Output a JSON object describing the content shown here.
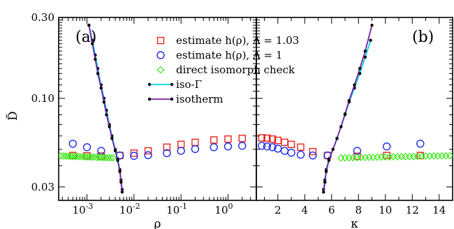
{
  "chart_data": {
    "type": "scatter",
    "ylabel": "D̃",
    "ylim": [
      0.025,
      0.3
    ],
    "yscale": "log",
    "yticks": [
      {
        "value": 0.03,
        "label": "0.03"
      },
      {
        "value": 0.1,
        "label": "0.10"
      },
      {
        "value": 0.3,
        "label": "0.30"
      }
    ],
    "legend": {
      "placement": "top-center",
      "entries": [
        {
          "label": "estimate h(ρ),  Λ = 1.03",
          "marker": "square",
          "color": "#e8231c"
        },
        {
          "label": "estimate h(ρ),  Λ = 1",
          "marker": "circle",
          "color": "#1c2be8"
        },
        {
          "label": "direct isomorph check",
          "marker": "diamond",
          "color": "#3de81c"
        },
        {
          "label": "iso-Γ",
          "marker": "line-dot",
          "color": "#00d4e6"
        },
        {
          "label": "isotherm",
          "marker": "line-dot",
          "color": "#7a1fa8"
        }
      ]
    },
    "panels": [
      {
        "label": "(a)",
        "xlabel": "ρ",
        "xscale": "log",
        "xlim": [
          0.00025,
          4.0
        ],
        "xticks": [
          {
            "value": 0.001,
            "label": "10",
            "sup": "-3"
          },
          {
            "value": 0.01,
            "label": "10",
            "sup": "-2"
          },
          {
            "value": 0.1,
            "label": "10",
            "sup": "-1"
          },
          {
            "value": 1,
            "label": "10",
            "sup": "0"
          }
        ],
        "series": [
          {
            "name": "estimate h(ρ),  Λ = 1.03",
            "x": [
              0.0005,
              0.001,
              0.002,
              0.005,
              0.01,
              0.02,
              0.05,
              0.1,
              0.2,
              0.5,
              1,
              2
            ],
            "y": [
              0.046,
              0.0458,
              0.0457,
              0.046,
              0.0475,
              0.049,
              0.0515,
              0.0535,
              0.055,
              0.0568,
              0.0575,
              0.058
            ]
          },
          {
            "name": "estimate h(ρ),  Λ = 1",
            "x": [
              0.0005,
              0.001,
              0.002,
              0.005,
              0.01,
              0.02,
              0.05,
              0.1,
              0.2,
              0.5,
              1,
              2
            ],
            "y": [
              0.054,
              0.0515,
              0.049,
              0.046,
              0.0458,
              0.0462,
              0.0475,
              0.049,
              0.0502,
              0.0515,
              0.052,
              0.0525
            ]
          },
          {
            "name": "direct isomorph check",
            "x": [
              0.00028,
              0.00032,
              0.00036,
              0.0004,
              0.00045,
              0.0005,
              0.00056,
              0.00063,
              0.0007,
              0.0008,
              0.0009,
              0.001,
              0.00112,
              0.00126,
              0.0014,
              0.0016,
              0.0018,
              0.002,
              0.00224,
              0.0025,
              0.0028,
              0.0032,
              0.0036
            ],
            "y": [
              0.0458,
              0.0457,
              0.0456,
              0.0455,
              0.0455,
              0.0454,
              0.0454,
              0.0453,
              0.0453,
              0.0452,
              0.0452,
              0.0451,
              0.0451,
              0.045,
              0.045,
              0.0449,
              0.0449,
              0.0448,
              0.0448,
              0.0447,
              0.0447,
              0.0446,
              0.0446
            ]
          },
          {
            "name": "iso-Γ",
            "x": [
              0.0011,
              0.0013,
              0.0015,
              0.0017,
              0.002,
              0.0023,
              0.0026,
              0.003,
              0.0034,
              0.004,
              0.0045,
              0.005,
              0.0053,
              0.0056
            ],
            "y": [
              0.27,
              0.22,
              0.18,
              0.15,
              0.12,
              0.1,
              0.085,
              0.07,
              0.06,
              0.05,
              0.044,
              0.038,
              0.033,
              0.029
            ]
          },
          {
            "name": "isotherm",
            "x": [
              0.0011,
              0.0013,
              0.0015,
              0.0017,
              0.002,
              0.0023,
              0.0026,
              0.003,
              0.0034,
              0.004,
              0.0045,
              0.005,
              0.0053,
              0.0056
            ],
            "y": [
              0.27,
              0.21,
              0.17,
              0.14,
              0.115,
              0.095,
              0.08,
              0.068,
              0.058,
              0.049,
              0.043,
              0.037,
              0.032,
              0.028
            ]
          }
        ]
      },
      {
        "label": "(b)",
        "xlabel": "κ",
        "xscale": "linear",
        "xlim": [
          0.4,
          15
        ],
        "xticks": [
          {
            "value": 2,
            "label": "2"
          },
          {
            "value": 4,
            "label": "4"
          },
          {
            "value": 6,
            "label": "6"
          },
          {
            "value": 8,
            "label": "8"
          },
          {
            "value": 10,
            "label": "10"
          },
          {
            "value": 12,
            "label": "12"
          },
          {
            "value": 14,
            "label": "14"
          }
        ],
        "series": [
          {
            "name": "estimate h(ρ),  Λ = 1.03",
            "x": [
              0.8,
              1.2,
              1.6,
              2.0,
              2.5,
              3.0,
              3.7,
              4.6,
              5.7,
              7.9,
              10.1,
              12.6
            ],
            "y": [
              0.0585,
              0.0582,
              0.0575,
              0.0565,
              0.055,
              0.0535,
              0.0515,
              0.0485,
              0.046,
              0.0455,
              0.046,
              0.046
            ]
          },
          {
            "name": "estimate h(ρ),  Λ = 1",
            "x": [
              0.8,
              1.2,
              1.6,
              2.0,
              2.5,
              3.0,
              3.7,
              4.6,
              5.7,
              7.9,
              10.1,
              12.6
            ],
            "y": [
              0.0525,
              0.052,
              0.0515,
              0.0505,
              0.049,
              0.0478,
              0.0465,
              0.046,
              0.046,
              0.049,
              0.052,
              0.054
            ]
          },
          {
            "name": "direct isomorph check",
            "x": [
              6.7,
              7.0,
              7.3,
              7.6,
              7.9,
              8.2,
              8.5,
              8.8,
              9.1,
              9.4,
              9.7,
              10.0,
              10.3,
              10.6,
              10.9,
              11.2,
              11.5,
              11.8,
              12.1,
              12.4,
              12.7,
              13.0,
              13.3,
              13.6,
              13.9,
              14.2,
              14.5,
              14.8
            ],
            "y": [
              0.0445,
              0.0446,
              0.0446,
              0.0447,
              0.0447,
              0.0448,
              0.0448,
              0.0449,
              0.0449,
              0.045,
              0.045,
              0.0451,
              0.0451,
              0.0452,
              0.0452,
              0.0453,
              0.0453,
              0.0454,
              0.0454,
              0.0455,
              0.0455,
              0.0456,
              0.0456,
              0.0457,
              0.0457,
              0.0458,
              0.0458,
              0.0459
            ]
          },
          {
            "name": "iso-Γ",
            "x": [
              5.4,
              5.5,
              5.6,
              5.8,
              6.1,
              6.4,
              6.7,
              7.0,
              7.3,
              7.7,
              8.1,
              8.5,
              8.9
            ],
            "y": [
              0.029,
              0.033,
              0.038,
              0.044,
              0.05,
              0.058,
              0.068,
              0.08,
              0.095,
              0.115,
              0.14,
              0.175,
              0.22
            ]
          },
          {
            "name": "isotherm",
            "x": [
              5.4,
              5.5,
              5.6,
              5.8,
              6.1,
              6.4,
              6.7,
              7.0,
              7.3,
              7.7,
              8.1,
              8.5,
              9.0
            ],
            "y": [
              0.028,
              0.032,
              0.037,
              0.043,
              0.05,
              0.058,
              0.068,
              0.081,
              0.097,
              0.12,
              0.15,
              0.19,
              0.27
            ]
          }
        ]
      }
    ]
  }
}
